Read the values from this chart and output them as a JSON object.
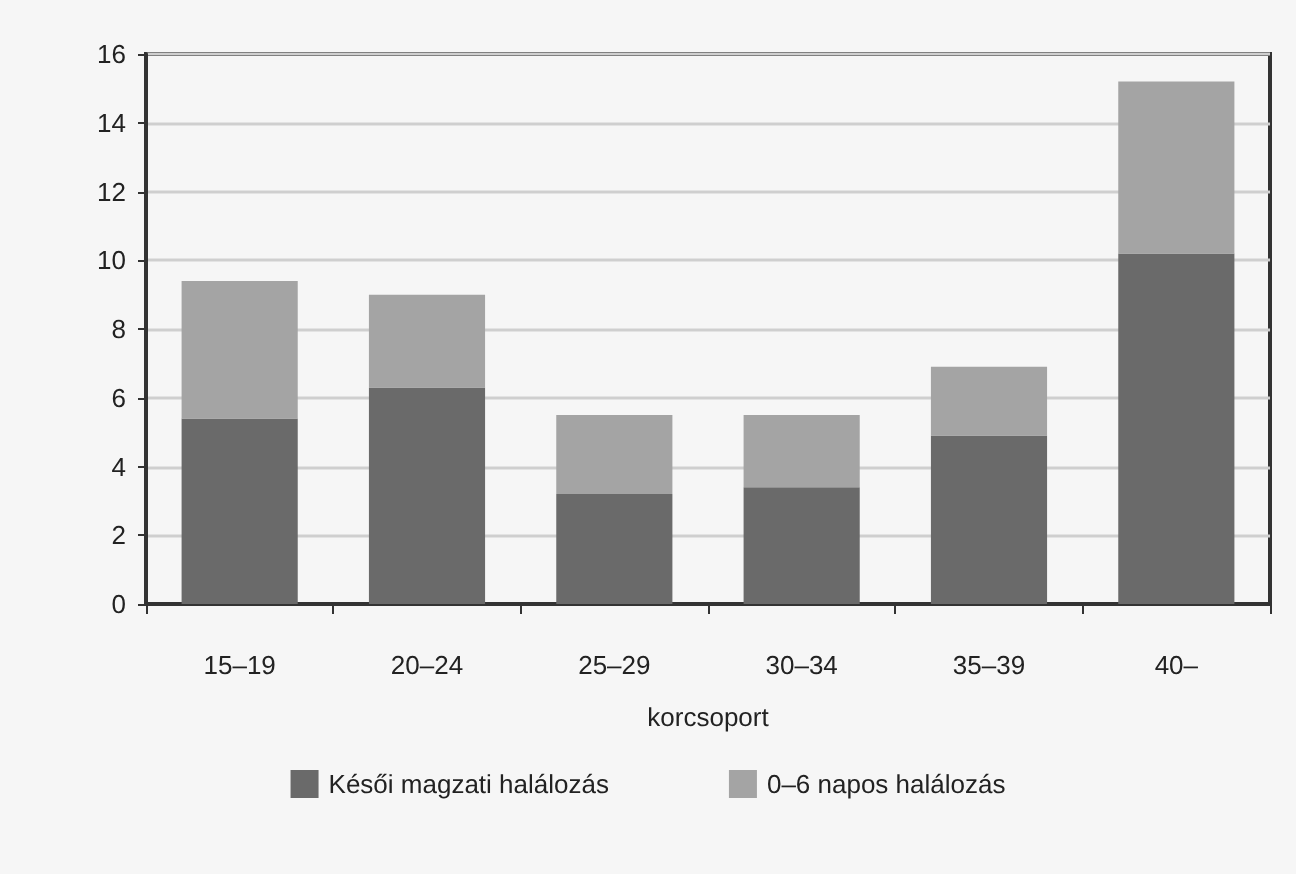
{
  "chart_data": {
    "type": "bar",
    "stacked": true,
    "xlabel": "korcsoport",
    "categories": [
      "15–19",
      "20–24",
      "25–29",
      "30–34",
      "35–39",
      "40–"
    ],
    "series": [
      {
        "name": "Késői magzati halálozás",
        "color": "#6a6a6a",
        "values": [
          5.4,
          6.3,
          3.2,
          3.4,
          4.9,
          10.2
        ]
      },
      {
        "name": "0–6 napos halálozás",
        "color": "#a4a4a4",
        "values": [
          4.0,
          2.7,
          2.3,
          2.1,
          2.0,
          5.0
        ]
      }
    ],
    "ylim": [
      0,
      16
    ],
    "yticks": [
      0,
      2,
      4,
      6,
      8,
      10,
      12,
      14,
      16
    ],
    "grid": "y",
    "legend": "bottom"
  }
}
